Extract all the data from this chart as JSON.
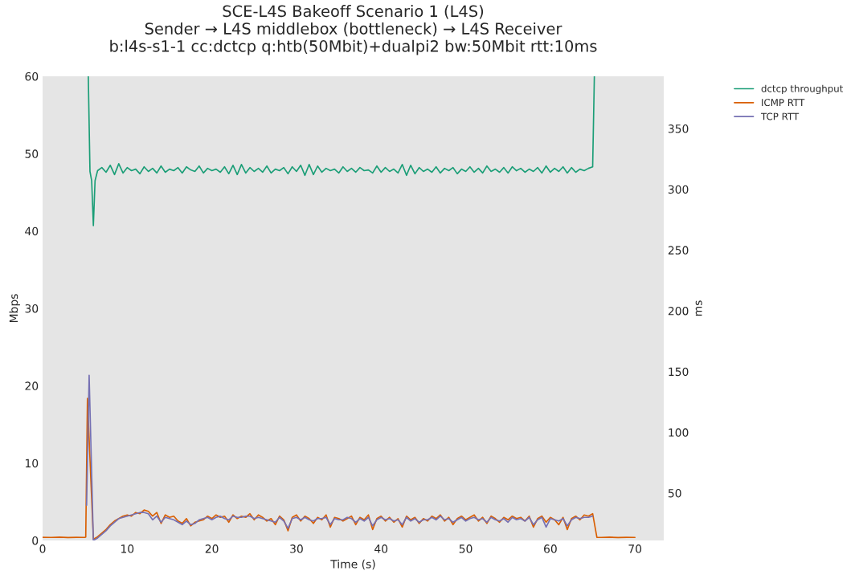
{
  "chart_data": {
    "type": "line",
    "title": "SCE-L4S Bakeoff Scenario 1 (L4S)\nSender → L4S middlebox (bottleneck) → L4S Receiver\nb:l4s-s1-1 cc:dctcp q:htb(50Mbit)+dualpi2 bw:50Mbit rtt:10ms",
    "xlabel": "Time (s)",
    "ylabel": "Mbps",
    "y2label": "ms",
    "xlim": [
      0,
      73.4
    ],
    "xticks": [
      0,
      10,
      20,
      30,
      40,
      50,
      60,
      70
    ],
    "ylim": [
      0,
      60
    ],
    "yticks": [
      0,
      10,
      20,
      30,
      40,
      50,
      60
    ],
    "y2lim": [
      11,
      393
    ],
    "y2ticks": [
      50,
      100,
      150,
      200,
      250,
      300,
      350
    ],
    "grid": false,
    "legend": "top right",
    "line_style": "solid",
    "marker": "none",
    "series": [
      {
        "name": "dctcp throughput",
        "color": "#1b9e77",
        "x": [
          5.4,
          5.6,
          5.8,
          6.0,
          6.2,
          6.5,
          7.0,
          7.5,
          8,
          8.5,
          9,
          9.5,
          10,
          10.5,
          11,
          11.5,
          12,
          12.5,
          13,
          13.5,
          14,
          14.5,
          15,
          15.5,
          16,
          16.5,
          17,
          17.5,
          18,
          18.5,
          19,
          19.5,
          20,
          20.5,
          21,
          21.5,
          22,
          22.5,
          23,
          23.5,
          24,
          24.5,
          25,
          25.5,
          26,
          26.5,
          27,
          27.5,
          28,
          28.5,
          29,
          29.5,
          30,
          30.5,
          31,
          31.5,
          32,
          32.5,
          33,
          33.5,
          34,
          34.5,
          35,
          35.5,
          36,
          36.5,
          37,
          37.5,
          38,
          38.5,
          39,
          39.5,
          40,
          40.5,
          41,
          41.5,
          42,
          42.5,
          43,
          43.5,
          44,
          44.5,
          45,
          45.5,
          46,
          46.5,
          47,
          47.5,
          48,
          48.5,
          49,
          49.5,
          50,
          50.5,
          51,
          51.5,
          52,
          52.5,
          53,
          53.5,
          54,
          54.5,
          55,
          55.5,
          56,
          56.5,
          57,
          57.5,
          58,
          58.5,
          59,
          59.5,
          60,
          60.5,
          61,
          61.5,
          62,
          62.5,
          63,
          63.5,
          64,
          64.5,
          65.0,
          65.2
        ],
        "values": [
          60,
          47.7,
          46.5,
          40.7,
          46.5,
          47.8,
          48.2,
          47.6,
          48.5,
          47.3,
          48.7,
          47.5,
          48.2,
          47.8,
          48.0,
          47.4,
          48.3,
          47.7,
          48.1,
          47.5,
          48.4,
          47.6,
          48.0,
          47.8,
          48.2,
          47.5,
          48.3,
          47.9,
          47.7,
          48.4,
          47.5,
          48.1,
          47.8,
          48.0,
          47.6,
          48.3,
          47.4,
          48.5,
          47.3,
          48.6,
          47.5,
          48.2,
          47.7,
          48.1,
          47.6,
          48.4,
          47.5,
          48.0,
          47.8,
          48.2,
          47.4,
          48.3,
          47.7,
          48.5,
          47.2,
          48.6,
          47.3,
          48.4,
          47.6,
          48.1,
          47.8,
          48.0,
          47.5,
          48.3,
          47.7,
          48.1,
          47.6,
          48.2,
          47.8,
          47.9,
          47.5,
          48.4,
          47.6,
          48.2,
          47.7,
          48.0,
          47.5,
          48.6,
          47.2,
          48.5,
          47.4,
          48.2,
          47.7,
          48.0,
          47.6,
          48.3,
          47.5,
          48.1,
          47.8,
          48.2,
          47.4,
          48.0,
          47.7,
          48.3,
          47.6,
          48.1,
          47.5,
          48.4,
          47.7,
          48.0,
          47.6,
          48.2,
          47.5,
          48.3,
          47.8,
          48.1,
          47.6,
          48.0,
          47.7,
          48.2,
          47.5,
          48.4,
          47.6,
          48.1,
          47.7,
          48.3,
          47.5,
          48.2,
          47.6,
          48.0,
          47.8,
          48.1,
          48.3,
          60
        ]
      },
      {
        "name": "ICMP RTT",
        "color": "#d95f02",
        "axis": "y2",
        "x": [
          0,
          1,
          2,
          3,
          4,
          5,
          5.1,
          5.3,
          6,
          6.5,
          7,
          7.5,
          8,
          8.5,
          9,
          9.5,
          10,
          10.5,
          11,
          11.5,
          12,
          12.5,
          13,
          13.5,
          14,
          14.5,
          15,
          15.5,
          16,
          16.5,
          17,
          17.5,
          18,
          18.5,
          19,
          19.5,
          20,
          20.5,
          21,
          21.5,
          22,
          22.5,
          23,
          23.5,
          24,
          24.5,
          25,
          25.5,
          26,
          26.5,
          27,
          27.5,
          28,
          28.5,
          29,
          29.5,
          30,
          30.5,
          31,
          31.5,
          32,
          32.5,
          33,
          33.5,
          34,
          34.5,
          35,
          35.5,
          36,
          36.5,
          37,
          37.5,
          38,
          38.5,
          39,
          39.5,
          40,
          40.5,
          41,
          41.5,
          42,
          42.5,
          43,
          43.5,
          44,
          44.5,
          45,
          45.5,
          46,
          46.5,
          47,
          47.5,
          48,
          48.5,
          49,
          49.5,
          50,
          50.5,
          51,
          51.5,
          52,
          52.5,
          53,
          53.5,
          54,
          54.5,
          55,
          55.5,
          56,
          56.5,
          57,
          57.5,
          58,
          58.5,
          59,
          59.5,
          60,
          60.5,
          61,
          61.5,
          62,
          62.5,
          63,
          63.5,
          64,
          64.5,
          65,
          65.5,
          66,
          67,
          68,
          69,
          70
        ],
        "values": [
          13.6,
          13.5,
          13.7,
          13.4,
          13.6,
          13.5,
          13.8,
          128,
          12,
          14,
          17,
          20,
          24,
          27,
          29,
          31,
          32,
          31,
          34,
          33,
          36,
          35,
          31,
          34,
          25,
          32,
          30,
          31,
          27,
          25,
          29,
          23,
          26,
          27,
          28,
          31,
          29,
          32,
          30,
          31,
          26,
          32,
          29,
          31,
          30,
          33,
          28,
          32,
          30,
          27,
          29,
          24,
          31,
          28,
          19,
          30,
          32,
          27,
          31,
          29,
          25,
          30,
          28,
          32,
          22,
          30,
          29,
          27,
          29,
          31,
          24,
          30,
          28,
          32,
          20,
          29,
          31,
          27,
          30,
          26,
          29,
          22,
          31,
          28,
          30,
          25,
          29,
          27,
          31,
          29,
          32,
          27,
          30,
          24,
          29,
          31,
          28,
          30,
          32,
          27,
          30,
          25,
          31,
          29,
          26,
          30,
          28,
          31,
          29,
          30,
          27,
          31,
          22,
          29,
          31,
          26,
          30,
          28,
          24,
          30,
          20,
          29,
          31,
          28,
          32,
          31,
          33,
          13.5,
          13.5,
          13.7,
          13.4,
          13.6,
          13.5
        ]
      },
      {
        "name": "TCP RTT",
        "color": "#7570b3",
        "axis": "y2",
        "x": [
          5.2,
          5.5,
          6,
          6.5,
          7,
          7.5,
          8,
          8.5,
          9,
          9.5,
          10,
          10.5,
          11,
          11.5,
          12,
          12.5,
          13,
          13.5,
          14,
          14.5,
          15,
          15.5,
          16,
          16.5,
          17,
          17.5,
          18,
          18.5,
          19,
          19.5,
          20,
          20.5,
          21,
          21.5,
          22,
          22.5,
          23,
          23.5,
          24,
          24.5,
          25,
          25.5,
          26,
          26.5,
          27,
          27.5,
          28,
          28.5,
          29,
          29.5,
          30,
          30.5,
          31,
          31.5,
          32,
          32.5,
          33,
          33.5,
          34,
          34.5,
          35,
          35.5,
          36,
          36.5,
          37,
          37.5,
          38,
          38.5,
          39,
          39.5,
          40,
          40.5,
          41,
          41.5,
          42,
          42.5,
          43,
          43.5,
          44,
          44.5,
          45,
          45.5,
          46,
          46.5,
          47,
          47.5,
          48,
          48.5,
          49,
          49.5,
          50,
          50.5,
          51,
          51.5,
          52,
          52.5,
          53,
          53.5,
          54,
          54.5,
          55,
          55.5,
          56,
          56.5,
          57,
          57.5,
          58,
          58.5,
          59,
          59.5,
          60,
          60.5,
          61,
          61.5,
          62,
          62.5,
          63,
          63.5,
          64,
          64.5,
          65
        ],
        "values": [
          40,
          147,
          11,
          13,
          16,
          19,
          23,
          26,
          29,
          30,
          31,
          32,
          33,
          34,
          34,
          33,
          28,
          31,
          26,
          30,
          29,
          28,
          26,
          24,
          27,
          24,
          25,
          28,
          29,
          30,
          28,
          30,
          31,
          29,
          28,
          31,
          30,
          30,
          31,
          31,
          29,
          30,
          29,
          28,
          27,
          26,
          30,
          27,
          21,
          29,
          30,
          28,
          30,
          28,
          27,
          29,
          29,
          30,
          24,
          29,
          28,
          28,
          30,
          29,
          26,
          29,
          27,
          30,
          23,
          28,
          30,
          28,
          29,
          27,
          28,
          24,
          30,
          27,
          29,
          26,
          28,
          28,
          30,
          28,
          31,
          28,
          29,
          26,
          28,
          30,
          27,
          29,
          30,
          28,
          29,
          26,
          30,
          28,
          27,
          29,
          26,
          30,
          28,
          29,
          27,
          30,
          24,
          28,
          30,
          22,
          29,
          28,
          27,
          29,
          23,
          28,
          30,
          29,
          30,
          30,
          31
        ]
      }
    ]
  }
}
